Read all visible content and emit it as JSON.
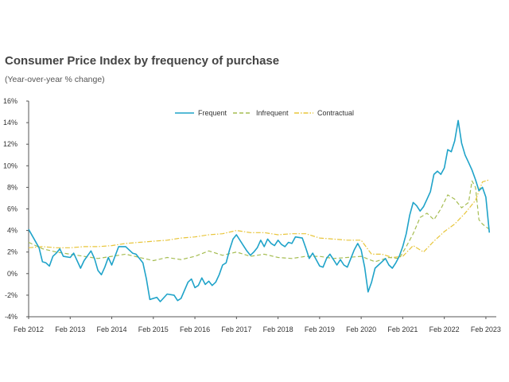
{
  "title": "Consumer Price Index by frequency of purchase",
  "subtitle": "(Year-over-year % change)",
  "chart_data": {
    "type": "line",
    "title": "Consumer Price Index by frequency of purchase",
    "subtitle": "(Year-over-year % change)",
    "xlabel": "",
    "ylabel": "",
    "x_range": [
      "2012-02",
      "2023-05"
    ],
    "ylim": [
      -4,
      16
    ],
    "y_ticks": [
      -4,
      -2,
      0,
      2,
      4,
      6,
      8,
      10,
      12,
      14,
      16
    ],
    "y_tick_labels": [
      "-4%",
      "-2%",
      "0%",
      "2%",
      "4%",
      "6%",
      "8%",
      "10%",
      "12%",
      "14%",
      "16%"
    ],
    "x_ticks": [
      "2012-02",
      "2013-02",
      "2014-02",
      "2015-02",
      "2016-02",
      "2017-02",
      "2018-02",
      "2019-02",
      "2020-02",
      "2021-02",
      "2022-02",
      "2023-02"
    ],
    "x_tick_labels": [
      "Feb 2012",
      "Feb 2013",
      "Feb 2014",
      "Feb 2015",
      "Feb 2016",
      "Feb 2017",
      "Feb 2018",
      "Feb 2019",
      "Feb 2020",
      "Feb 2021",
      "Feb 2022",
      "Feb 2023"
    ],
    "grid": false,
    "legend_position": "top-center",
    "series": [
      {
        "name": "Frequent",
        "color": "#1fa3c9",
        "dash": "solid",
        "points": [
          [
            "2012-02",
            4.1
          ],
          [
            "2012-05",
            2.4
          ],
          [
            "2012-06",
            1.1
          ],
          [
            "2012-07",
            1.0
          ],
          [
            "2012-08",
            0.7
          ],
          [
            "2012-09",
            1.6
          ],
          [
            "2012-10",
            1.9
          ],
          [
            "2012-11",
            2.3
          ],
          [
            "2012-12",
            1.6
          ],
          [
            "2013-02",
            1.5
          ],
          [
            "2013-03",
            1.9
          ],
          [
            "2013-05",
            0.5
          ],
          [
            "2013-06",
            1.2
          ],
          [
            "2013-08",
            2.1
          ],
          [
            "2013-09",
            1.4
          ],
          [
            "2013-10",
            0.3
          ],
          [
            "2013-11",
            -0.1
          ],
          [
            "2013-12",
            0.6
          ],
          [
            "2014-01",
            1.5
          ],
          [
            "2014-02",
            0.8
          ],
          [
            "2014-04",
            2.5
          ],
          [
            "2014-06",
            2.5
          ],
          [
            "2014-08",
            1.9
          ],
          [
            "2014-09",
            1.8
          ],
          [
            "2014-11",
            1.0
          ],
          [
            "2014-12",
            -0.5
          ],
          [
            "2015-01",
            -2.4
          ],
          [
            "2015-03",
            -2.2
          ],
          [
            "2015-04",
            -2.6
          ],
          [
            "2015-06",
            -1.9
          ],
          [
            "2015-08",
            -2.0
          ],
          [
            "2015-09",
            -2.5
          ],
          [
            "2015-10",
            -2.3
          ],
          [
            "2015-12",
            -0.8
          ],
          [
            "2016-01",
            -0.5
          ],
          [
            "2016-02",
            -1.3
          ],
          [
            "2016-03",
            -1.1
          ],
          [
            "2016-04",
            -0.4
          ],
          [
            "2016-05",
            -1.0
          ],
          [
            "2016-06",
            -0.7
          ],
          [
            "2016-07",
            -1.1
          ],
          [
            "2016-08",
            -0.8
          ],
          [
            "2016-09",
            -0.1
          ],
          [
            "2016-10",
            0.8
          ],
          [
            "2016-11",
            1.0
          ],
          [
            "2016-12",
            2.2
          ],
          [
            "2017-01",
            3.2
          ],
          [
            "2017-02",
            3.6
          ],
          [
            "2017-04",
            2.6
          ],
          [
            "2017-05",
            2.1
          ],
          [
            "2017-06",
            1.7
          ],
          [
            "2017-07",
            2.0
          ],
          [
            "2017-08",
            2.4
          ],
          [
            "2017-09",
            3.1
          ],
          [
            "2017-10",
            2.5
          ],
          [
            "2017-11",
            3.2
          ],
          [
            "2017-12",
            2.8
          ],
          [
            "2018-01",
            2.6
          ],
          [
            "2018-02",
            3.1
          ],
          [
            "2018-03",
            2.7
          ],
          [
            "2018-04",
            2.5
          ],
          [
            "2018-05",
            2.9
          ],
          [
            "2018-06",
            2.8
          ],
          [
            "2018-07",
            3.4
          ],
          [
            "2018-09",
            3.3
          ],
          [
            "2018-10",
            2.4
          ],
          [
            "2018-11",
            1.4
          ],
          [
            "2018-12",
            1.9
          ],
          [
            "2019-02",
            0.7
          ],
          [
            "2019-03",
            0.6
          ],
          [
            "2019-04",
            1.4
          ],
          [
            "2019-05",
            1.8
          ],
          [
            "2019-06",
            1.3
          ],
          [
            "2019-07",
            0.8
          ],
          [
            "2019-08",
            1.3
          ],
          [
            "2019-09",
            0.8
          ],
          [
            "2019-10",
            0.6
          ],
          [
            "2019-11",
            1.4
          ],
          [
            "2019-12",
            2.2
          ],
          [
            "2020-01",
            2.8
          ],
          [
            "2020-02",
            2.2
          ],
          [
            "2020-03",
            0.6
          ],
          [
            "2020-04",
            -1.7
          ],
          [
            "2020-05",
            -0.8
          ],
          [
            "2020-06",
            0.5
          ],
          [
            "2020-07",
            0.8
          ],
          [
            "2020-08",
            1.1
          ],
          [
            "2020-09",
            1.4
          ],
          [
            "2020-10",
            0.8
          ],
          [
            "2020-11",
            0.5
          ],
          [
            "2020-12",
            1.0
          ],
          [
            "2021-01",
            1.6
          ],
          [
            "2021-02",
            2.5
          ],
          [
            "2021-03",
            3.7
          ],
          [
            "2021-04",
            5.4
          ],
          [
            "2021-05",
            6.6
          ],
          [
            "2021-06",
            6.3
          ],
          [
            "2021-07",
            5.8
          ],
          [
            "2021-08",
            6.2
          ],
          [
            "2021-09",
            6.9
          ],
          [
            "2021-10",
            7.6
          ],
          [
            "2021-11",
            9.2
          ],
          [
            "2021-12",
            9.5
          ],
          [
            "2022-01",
            9.2
          ],
          [
            "2022-02",
            9.8
          ],
          [
            "2022-03",
            11.5
          ],
          [
            "2022-04",
            11.3
          ],
          [
            "2022-05",
            12.3
          ],
          [
            "2022-06",
            14.2
          ],
          [
            "2022-07",
            12.1
          ],
          [
            "2022-08",
            11.0
          ],
          [
            "2022-09",
            10.3
          ],
          [
            "2022-10",
            9.6
          ],
          [
            "2022-11",
            8.7
          ],
          [
            "2022-12",
            7.7
          ],
          [
            "2023-01",
            8.0
          ],
          [
            "2023-02",
            7.1
          ],
          [
            "2023-03",
            3.8
          ]
        ]
      },
      {
        "name": "Infrequent",
        "color": "#a6bd52",
        "dash": "dashed",
        "points": [
          [
            "2012-02",
            2.9
          ],
          [
            "2012-06",
            2.3
          ],
          [
            "2012-10",
            2.0
          ],
          [
            "2013-02",
            1.8
          ],
          [
            "2013-06",
            1.6
          ],
          [
            "2013-10",
            1.4
          ],
          [
            "2014-02",
            1.6
          ],
          [
            "2014-06",
            1.8
          ],
          [
            "2014-10",
            1.5
          ],
          [
            "2015-02",
            1.2
          ],
          [
            "2015-06",
            1.5
          ],
          [
            "2015-10",
            1.3
          ],
          [
            "2016-02",
            1.6
          ],
          [
            "2016-06",
            2.1
          ],
          [
            "2016-10",
            1.7
          ],
          [
            "2017-02",
            2.0
          ],
          [
            "2017-06",
            1.6
          ],
          [
            "2017-10",
            1.8
          ],
          [
            "2018-02",
            1.5
          ],
          [
            "2018-06",
            1.4
          ],
          [
            "2018-10",
            1.6
          ],
          [
            "2019-02",
            1.6
          ],
          [
            "2019-06",
            1.4
          ],
          [
            "2019-10",
            1.5
          ],
          [
            "2020-02",
            1.6
          ],
          [
            "2020-06",
            1.1
          ],
          [
            "2020-10",
            1.5
          ],
          [
            "2021-01",
            1.4
          ],
          [
            "2021-03",
            2.5
          ],
          [
            "2021-05",
            3.7
          ],
          [
            "2021-07",
            5.2
          ],
          [
            "2021-09",
            5.6
          ],
          [
            "2021-11",
            5.0
          ],
          [
            "2022-01",
            6.0
          ],
          [
            "2022-03",
            7.3
          ],
          [
            "2022-05",
            6.9
          ],
          [
            "2022-07",
            6.1
          ],
          [
            "2022-09",
            6.6
          ],
          [
            "2022-10",
            8.6
          ],
          [
            "2022-11",
            8.0
          ],
          [
            "2022-12",
            5.0
          ],
          [
            "2023-01",
            4.6
          ],
          [
            "2023-03",
            4.1
          ]
        ]
      },
      {
        "name": "Contractual",
        "color": "#e8c53a",
        "dash": "dash-dot",
        "points": [
          [
            "2012-02",
            2.4
          ],
          [
            "2012-06",
            2.5
          ],
          [
            "2012-10",
            2.4
          ],
          [
            "2013-02",
            2.4
          ],
          [
            "2013-06",
            2.5
          ],
          [
            "2013-10",
            2.5
          ],
          [
            "2014-02",
            2.6
          ],
          [
            "2014-06",
            2.8
          ],
          [
            "2014-10",
            2.9
          ],
          [
            "2015-02",
            3.0
          ],
          [
            "2015-06",
            3.1
          ],
          [
            "2015-10",
            3.3
          ],
          [
            "2016-02",
            3.4
          ],
          [
            "2016-06",
            3.6
          ],
          [
            "2016-10",
            3.7
          ],
          [
            "2017-02",
            4.0
          ],
          [
            "2017-06",
            3.8
          ],
          [
            "2017-10",
            3.8
          ],
          [
            "2018-02",
            3.6
          ],
          [
            "2018-06",
            3.7
          ],
          [
            "2018-10",
            3.7
          ],
          [
            "2019-02",
            3.3
          ],
          [
            "2019-06",
            3.2
          ],
          [
            "2019-10",
            3.1
          ],
          [
            "2020-02",
            3.1
          ],
          [
            "2020-05",
            1.8
          ],
          [
            "2020-08",
            1.8
          ],
          [
            "2020-11",
            1.5
          ],
          [
            "2021-02",
            1.6
          ],
          [
            "2021-05",
            2.6
          ],
          [
            "2021-08",
            2.0
          ],
          [
            "2021-11",
            3.0
          ],
          [
            "2022-02",
            3.9
          ],
          [
            "2022-05",
            4.6
          ],
          [
            "2022-08",
            5.6
          ],
          [
            "2022-11",
            6.8
          ],
          [
            "2023-01",
            8.5
          ],
          [
            "2023-03",
            8.7
          ]
        ]
      }
    ]
  }
}
